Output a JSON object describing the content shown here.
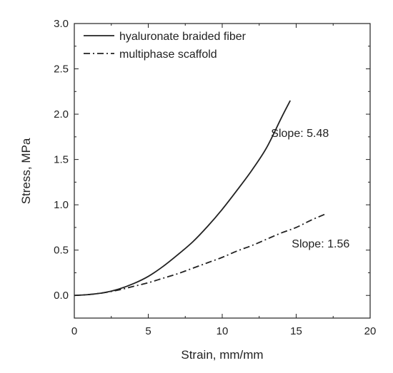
{
  "chart_data": {
    "type": "line",
    "title": "",
    "xlabel": "Strain, mm/mm",
    "ylabel": "Stress, MPa",
    "xlim": [
      0,
      20
    ],
    "ylim": [
      -0.25,
      3.0
    ],
    "xticks": [
      0,
      5,
      10,
      15,
      20
    ],
    "yticks": [
      0.0,
      0.5,
      1.0,
      1.5,
      2.0,
      2.5,
      3.0
    ],
    "xtick_labels": [
      "0",
      "5",
      "10",
      "15",
      "20"
    ],
    "ytick_labels": [
      "0.0",
      "0.5",
      "1.0",
      "1.5",
      "2.0",
      "2.5",
      "3.0"
    ],
    "grid": false,
    "legend_position": "top-left",
    "series": [
      {
        "name": "hyaluronate braided fiber",
        "style": "solid",
        "color": "#222222",
        "x": [
          0,
          1,
          2,
          3,
          4,
          5,
          6,
          7,
          8,
          9,
          10,
          11,
          12,
          13,
          14,
          14.6
        ],
        "y": [
          0.0,
          0.01,
          0.03,
          0.07,
          0.13,
          0.21,
          0.32,
          0.45,
          0.59,
          0.76,
          0.95,
          1.16,
          1.38,
          1.63,
          1.96,
          2.15
        ]
      },
      {
        "name": "multiphase scaffold",
        "style": "dash-dot",
        "color": "#222222",
        "x": [
          0,
          1,
          2,
          3,
          4,
          5,
          6,
          7,
          8,
          9,
          10,
          11,
          12,
          13,
          14,
          15,
          16,
          17
        ],
        "y": [
          0.0,
          0.01,
          0.03,
          0.06,
          0.1,
          0.14,
          0.19,
          0.24,
          0.3,
          0.36,
          0.42,
          0.49,
          0.55,
          0.62,
          0.69,
          0.75,
          0.83,
          0.9
        ]
      }
    ],
    "annotations": [
      {
        "text": "Slope: 5.48",
        "x": 13.3,
        "y": 1.75
      },
      {
        "text": "Slope: 1.56",
        "x": 14.7,
        "y": 0.53
      }
    ]
  }
}
